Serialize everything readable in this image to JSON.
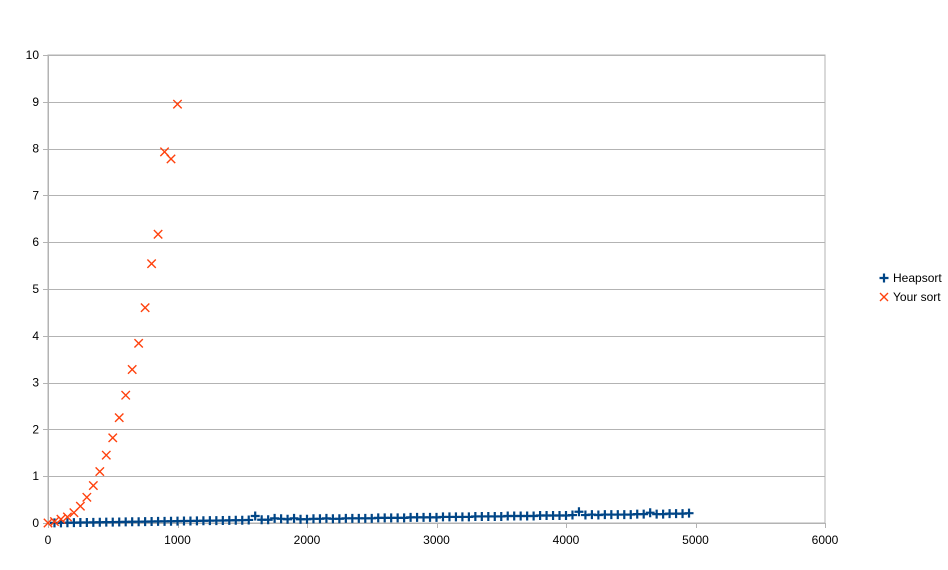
{
  "chart_data": {
    "type": "scatter",
    "title": "",
    "xlabel": "",
    "ylabel": "",
    "xlim": [
      0,
      6000
    ],
    "ylim": [
      0,
      10
    ],
    "xticks": [
      0,
      1000,
      2000,
      3000,
      4000,
      5000,
      6000
    ],
    "yticks": [
      0,
      1,
      2,
      3,
      4,
      5,
      6,
      7,
      8,
      9,
      10
    ],
    "grid": "horizontal",
    "legend_position": "right",
    "series": [
      {
        "name": "Heapsort",
        "marker": "plus",
        "color": "#004586",
        "x": [
          50,
          100,
          150,
          200,
          250,
          300,
          350,
          400,
          450,
          500,
          550,
          600,
          650,
          700,
          750,
          800,
          850,
          900,
          950,
          1000,
          1050,
          1100,
          1150,
          1200,
          1250,
          1300,
          1350,
          1400,
          1450,
          1500,
          1550,
          1600,
          1650,
          1700,
          1750,
          1800,
          1850,
          1900,
          1950,
          2000,
          2050,
          2100,
          2150,
          2200,
          2250,
          2300,
          2350,
          2400,
          2450,
          2500,
          2550,
          2600,
          2650,
          2700,
          2750,
          2800,
          2850,
          2900,
          2950,
          3000,
          3050,
          3100,
          3150,
          3200,
          3250,
          3300,
          3350,
          3400,
          3450,
          3500,
          3550,
          3600,
          3650,
          3700,
          3750,
          3800,
          3850,
          3900,
          3950,
          4000,
          4050,
          4100,
          4150,
          4200,
          4250,
          4300,
          4350,
          4400,
          4450,
          4500,
          4550,
          4600,
          4650,
          4700,
          4750,
          4800,
          4850,
          4900,
          4950
        ],
        "y": [
          0.002,
          0.004,
          0.006,
          0.008,
          0.01,
          0.012,
          0.014,
          0.016,
          0.018,
          0.02,
          0.022,
          0.024,
          0.026,
          0.028,
          0.03,
          0.032,
          0.034,
          0.036,
          0.038,
          0.04,
          0.042,
          0.044,
          0.046,
          0.048,
          0.05,
          0.052,
          0.054,
          0.056,
          0.058,
          0.06,
          0.065,
          0.15,
          0.07,
          0.07,
          0.1,
          0.09,
          0.08,
          0.1,
          0.08,
          0.08,
          0.09,
          0.09,
          0.1,
          0.09,
          0.09,
          0.1,
          0.1,
          0.1,
          0.1,
          0.1,
          0.11,
          0.11,
          0.11,
          0.11,
          0.11,
          0.12,
          0.12,
          0.12,
          0.12,
          0.12,
          0.13,
          0.13,
          0.13,
          0.13,
          0.13,
          0.14,
          0.14,
          0.14,
          0.14,
          0.14,
          0.15,
          0.15,
          0.15,
          0.15,
          0.15,
          0.16,
          0.16,
          0.16,
          0.16,
          0.16,
          0.17,
          0.24,
          0.17,
          0.18,
          0.17,
          0.18,
          0.18,
          0.18,
          0.18,
          0.18,
          0.19,
          0.19,
          0.22,
          0.19,
          0.19,
          0.2,
          0.2,
          0.2,
          0.21
        ]
      },
      {
        "name": "Your sort",
        "marker": "cross",
        "color": "#ff420e",
        "x": [
          0,
          50,
          100,
          150,
          200,
          250,
          300,
          350,
          400,
          450,
          500,
          550,
          600,
          650,
          700,
          750,
          800,
          850,
          900,
          950,
          1000
        ],
        "y": [
          0,
          0.03,
          0.08,
          0.13,
          0.22,
          0.36,
          0.55,
          0.8,
          1.1,
          1.45,
          1.82,
          2.25,
          2.73,
          3.28,
          3.84,
          4.6,
          5.54,
          6.17,
          7.93,
          7.78,
          8.95
        ]
      }
    ]
  }
}
